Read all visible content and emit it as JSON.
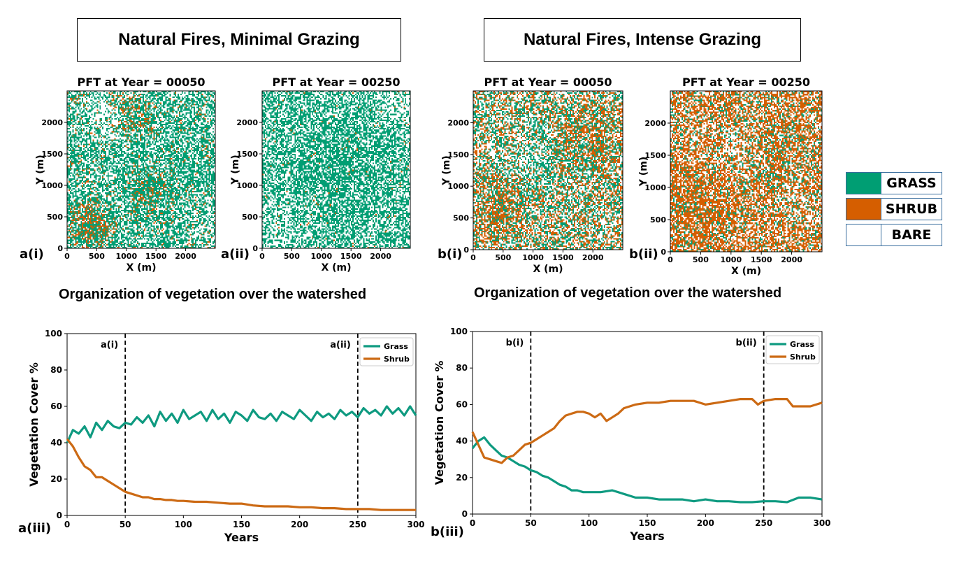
{
  "colors": {
    "grass": "#009e73",
    "shrub": "#d55e00",
    "bare": "#ffffff",
    "grass_line": "#0e9a80",
    "shrub_line": "#cc6a14"
  },
  "scenarios": {
    "a": {
      "title": "Natural Fires, Minimal Grazing"
    },
    "b": {
      "title": "Natural Fires, Intense Grazing"
    }
  },
  "maps": [
    {
      "id": "a_i",
      "title": "PFT at Year = 00050",
      "panel_label": "a(i)",
      "xlabel": "X (m)",
      "ylabel": "Y (m)"
    },
    {
      "id": "a_ii",
      "title": "PFT at Year = 00250",
      "panel_label": "a(ii)",
      "xlabel": "X (m)",
      "ylabel": "Y (m)"
    },
    {
      "id": "b_i",
      "title": "PFT at Year = 00050",
      "panel_label": "b(i)",
      "xlabel": "X (m)",
      "ylabel": "Y (m)"
    },
    {
      "id": "b_ii",
      "title": "PFT at Year = 00250",
      "panel_label": "b(ii)",
      "xlabel": "X (m)",
      "ylabel": "Y (m)"
    }
  ],
  "map_ticks": [
    "0",
    "500",
    "1000",
    "1500",
    "2000"
  ],
  "legend": {
    "grass": "GRASS",
    "shrub": "SHRUB",
    "bare": "BARE"
  },
  "organization_caption": "Organization of vegetation over the watershed",
  "chart_data": [
    {
      "type": "line",
      "panel_label": "a(iii)",
      "xlabel": "Years",
      "ylabel": "Vegetation Cover %",
      "xlim": [
        0,
        300
      ],
      "ylim": [
        0,
        100
      ],
      "xticks": [
        0,
        50,
        100,
        150,
        200,
        250,
        300
      ],
      "yticks": [
        0,
        20,
        40,
        60,
        80,
        100
      ],
      "legend_position": "top-right",
      "markers": [
        {
          "x": 50,
          "label": "a(i)"
        },
        {
          "x": 250,
          "label": "a(ii)"
        }
      ],
      "series": [
        {
          "name": "Grass",
          "color_key": "grass_line",
          "x": [
            0,
            5,
            10,
            15,
            20,
            25,
            30,
            35,
            40,
            45,
            50,
            55,
            60,
            65,
            70,
            75,
            80,
            85,
            90,
            95,
            100,
            105,
            110,
            115,
            120,
            125,
            130,
            135,
            140,
            145,
            150,
            155,
            160,
            165,
            170,
            175,
            180,
            185,
            190,
            195,
            200,
            205,
            210,
            215,
            220,
            225,
            230,
            235,
            240,
            245,
            250,
            255,
            260,
            265,
            270,
            275,
            280,
            285,
            290,
            295,
            300
          ],
          "y": [
            40,
            47,
            45,
            49,
            43,
            51,
            47,
            52,
            49,
            48,
            51,
            50,
            54,
            51,
            55,
            49,
            57,
            52,
            56,
            51,
            58,
            53,
            55,
            57,
            52,
            58,
            53,
            56,
            51,
            57,
            55,
            52,
            58,
            54,
            53,
            56,
            52,
            57,
            55,
            53,
            58,
            55,
            52,
            57,
            54,
            56,
            53,
            58,
            55,
            57,
            54,
            59,
            56,
            58,
            55,
            60,
            56,
            59,
            55,
            60,
            55
          ]
        },
        {
          "name": "Shrub",
          "color_key": "shrub_line",
          "x": [
            0,
            5,
            10,
            15,
            20,
            25,
            30,
            35,
            40,
            45,
            50,
            55,
            60,
            65,
            70,
            75,
            80,
            85,
            90,
            95,
            100,
            110,
            120,
            130,
            140,
            150,
            160,
            170,
            180,
            190,
            200,
            210,
            220,
            230,
            240,
            250,
            260,
            270,
            280,
            290,
            300
          ],
          "y": [
            42,
            38,
            32,
            27,
            25,
            21,
            21,
            19,
            17,
            15,
            13,
            12,
            11,
            10,
            10,
            9,
            9,
            8.5,
            8.5,
            8,
            8,
            7.5,
            7.5,
            7,
            6.5,
            6.5,
            5.5,
            5,
            5,
            5,
            4.5,
            4.5,
            4,
            4,
            3.5,
            3.5,
            3.5,
            3,
            3,
            3,
            3
          ]
        }
      ]
    },
    {
      "type": "line",
      "panel_label": "b(iii)",
      "xlabel": "Years",
      "ylabel": "Vegetation Cover %",
      "xlim": [
        0,
        300
      ],
      "ylim": [
        0,
        100
      ],
      "xticks": [
        0,
        50,
        100,
        150,
        200,
        250,
        300
      ],
      "yticks": [
        0,
        20,
        40,
        60,
        80,
        100
      ],
      "legend_position": "top-right",
      "markers": [
        {
          "x": 50,
          "label": "b(i)"
        },
        {
          "x": 250,
          "label": "b(ii)"
        }
      ],
      "series": [
        {
          "name": "Grass",
          "color_key": "grass_line",
          "x": [
            0,
            5,
            10,
            15,
            20,
            25,
            30,
            35,
            40,
            45,
            50,
            55,
            60,
            65,
            70,
            75,
            80,
            85,
            90,
            95,
            100,
            110,
            120,
            130,
            140,
            150,
            160,
            170,
            180,
            190,
            200,
            210,
            220,
            230,
            240,
            250,
            260,
            270,
            280,
            290,
            300
          ],
          "y": [
            36,
            40,
            42,
            38,
            35,
            32,
            31,
            29,
            27,
            26,
            24,
            23,
            21,
            20,
            18,
            16,
            15,
            13,
            13,
            12,
            12,
            12,
            13,
            11,
            9,
            9,
            8,
            8,
            8,
            7,
            8,
            7,
            7,
            6.5,
            6.5,
            7,
            7,
            6.5,
            9,
            9,
            8
          ]
        },
        {
          "name": "Shrub",
          "color_key": "shrub_line",
          "x": [
            0,
            5,
            10,
            15,
            20,
            25,
            30,
            35,
            40,
            45,
            50,
            55,
            60,
            65,
            70,
            75,
            80,
            85,
            90,
            95,
            100,
            105,
            110,
            115,
            120,
            125,
            130,
            135,
            140,
            150,
            160,
            170,
            180,
            190,
            200,
            210,
            220,
            230,
            240,
            245,
            250,
            260,
            270,
            275,
            280,
            290,
            300
          ],
          "y": [
            45,
            38,
            31,
            30,
            29,
            28,
            31,
            32,
            35,
            38,
            39,
            41,
            43,
            45,
            47,
            51,
            54,
            55,
            56,
            56,
            55,
            53,
            55,
            51,
            53,
            55,
            58,
            59,
            60,
            61,
            61,
            62,
            62,
            62,
            60,
            61,
            62,
            63,
            63,
            60,
            62,
            63,
            63,
            59,
            59,
            59,
            61
          ]
        }
      ]
    }
  ]
}
